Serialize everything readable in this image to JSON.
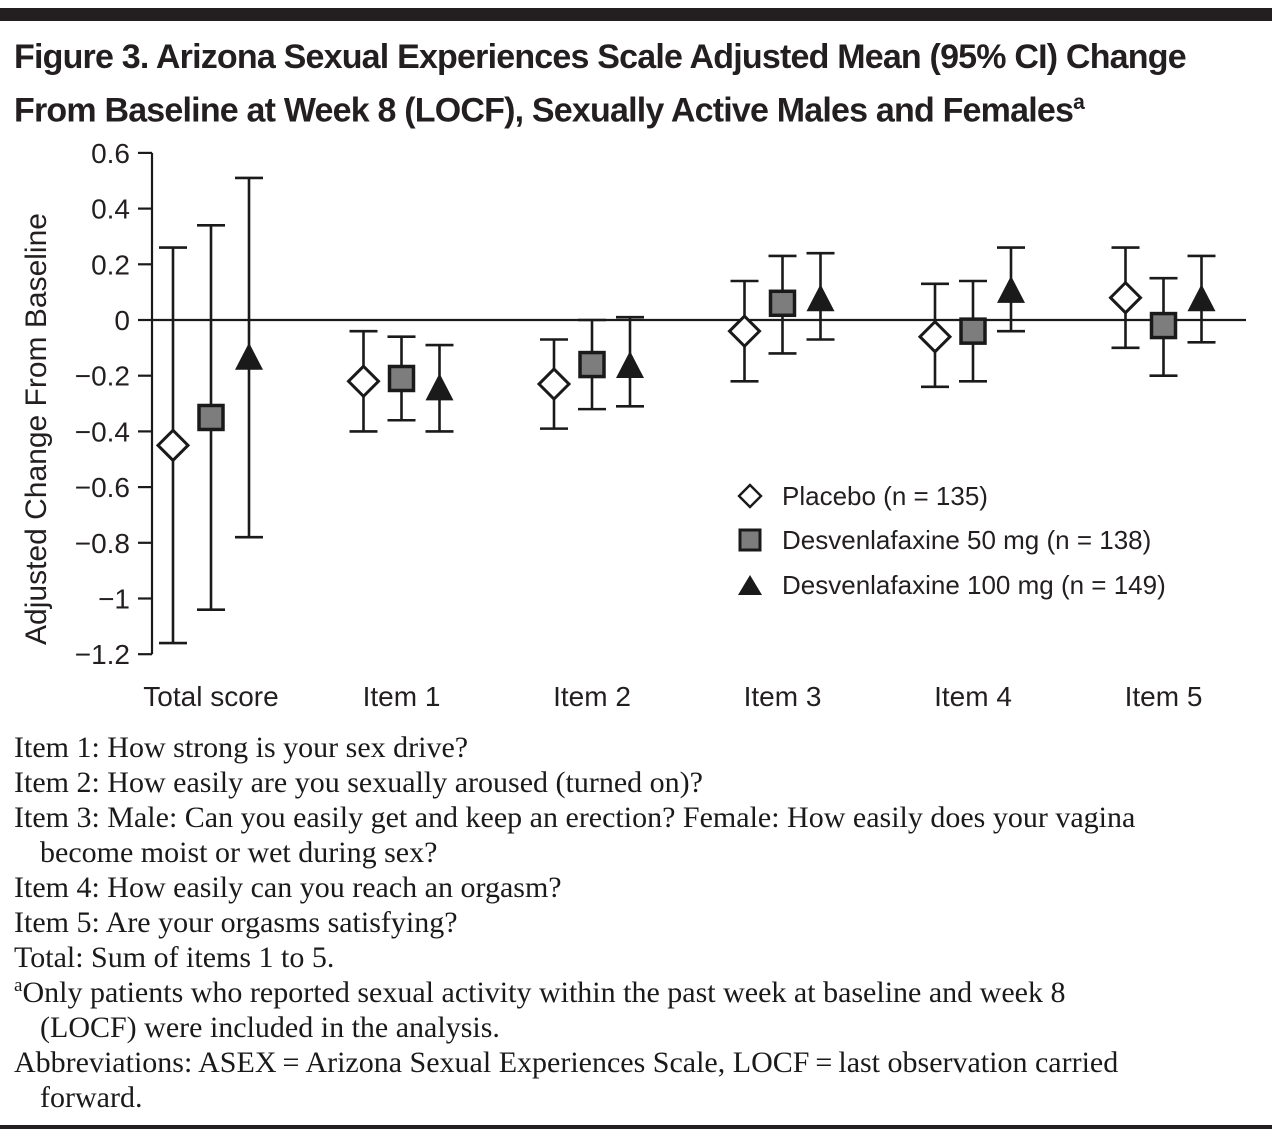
{
  "figure": {
    "title_line1": "Figure 3. Arizona Sexual Experiences Scale Adjusted Mean (95% CI) Change",
    "title_line2": "From Baseline at Week 8 (LOCF), Sexually Active Males and Females",
    "title_superscript": "a"
  },
  "colors": {
    "ink": "#231f20",
    "line": "#1a1a1a",
    "marker_gray": "#7d7d7d",
    "marker_white": "#ffffff"
  },
  "chart_data": {
    "type": "scatter",
    "variant": "adjusted-mean-with-95ci-error-bars",
    "title": "Figure 3. Arizona Sexual Experiences Scale Adjusted Mean (95% CI) Change From Baseline at Week 8 (LOCF), Sexually Active Males and Females",
    "xlabel": "",
    "ylabel": "Adjusted Change From Baseline",
    "ylim": [
      -1.2,
      0.6
    ],
    "yticks": [
      0.6,
      0.4,
      0.2,
      0,
      -0.2,
      -0.4,
      -0.6,
      -0.8,
      -1.0,
      -1.2
    ],
    "ytick_labels": [
      "0.6",
      "0.4",
      "0.2",
      "0",
      "−0.2",
      "−0.4",
      "−0.6",
      "−0.8",
      "−1",
      "−1.2"
    ],
    "categories": [
      "Total score",
      "Item 1",
      "Item 2",
      "Item 3",
      "Item 4",
      "Item 5"
    ],
    "grid": false,
    "zero_reference_line": true,
    "legend_position": "inside right, below center",
    "series": [
      {
        "name": "Placebo (n = 135)",
        "marker": "open-diamond",
        "means": [
          -0.45,
          -0.22,
          -0.23,
          -0.04,
          -0.06,
          0.08
        ],
        "ci_low": [
          -1.16,
          -0.4,
          -0.39,
          -0.22,
          -0.24,
          -0.1
        ],
        "ci_high": [
          0.26,
          -0.04,
          -0.07,
          0.14,
          0.13,
          0.26
        ]
      },
      {
        "name": "Desvenlafaxine 50 mg (n = 138)",
        "marker": "gray-square",
        "means": [
          -0.35,
          -0.21,
          -0.16,
          0.06,
          -0.04,
          -0.02
        ],
        "ci_low": [
          -1.04,
          -0.36,
          -0.32,
          -0.12,
          -0.22,
          -0.2
        ],
        "ci_high": [
          0.34,
          -0.06,
          0.0,
          0.23,
          0.14,
          0.15
        ]
      },
      {
        "name": "Desvenlafaxine 100 mg (n = 149)",
        "marker": "black-triangle",
        "means": [
          -0.13,
          -0.24,
          -0.16,
          0.08,
          0.11,
          0.08
        ],
        "ci_low": [
          -0.78,
          -0.4,
          -0.31,
          -0.07,
          -0.04,
          -0.08
        ],
        "ci_high": [
          0.51,
          -0.09,
          0.01,
          0.24,
          0.26,
          0.23
        ]
      }
    ]
  },
  "footnotes": [
    {
      "text": "Item 1: How strong is your sex drive?",
      "indent": false
    },
    {
      "text": "Item 2: How easily are you sexually aroused (turned on)?",
      "indent": false
    },
    {
      "text": "Item 3: Male: Can you easily get and keep an erection? Female: How easily does your vagina",
      "indent": false
    },
    {
      "text": "become moist or wet during sex?",
      "indent": true
    },
    {
      "text": "Item 4: How easily can you reach an orgasm?",
      "indent": false
    },
    {
      "text": "Item 5: Are your orgasms satisfying?",
      "indent": false
    },
    {
      "text": "Total: Sum of items 1 to 5.",
      "indent": false
    },
    {
      "sup": "a",
      "text": "Only patients who reported sexual activity within the past week at baseline and week 8",
      "indent": false
    },
    {
      "text": "(LOCF) were included in the analysis.",
      "indent": true
    },
    {
      "text": "Abbreviations: ASEX = Arizona Sexual Experiences Scale, LOCF = last observation carried",
      "indent": false
    },
    {
      "text": "forward.",
      "indent": true
    }
  ]
}
